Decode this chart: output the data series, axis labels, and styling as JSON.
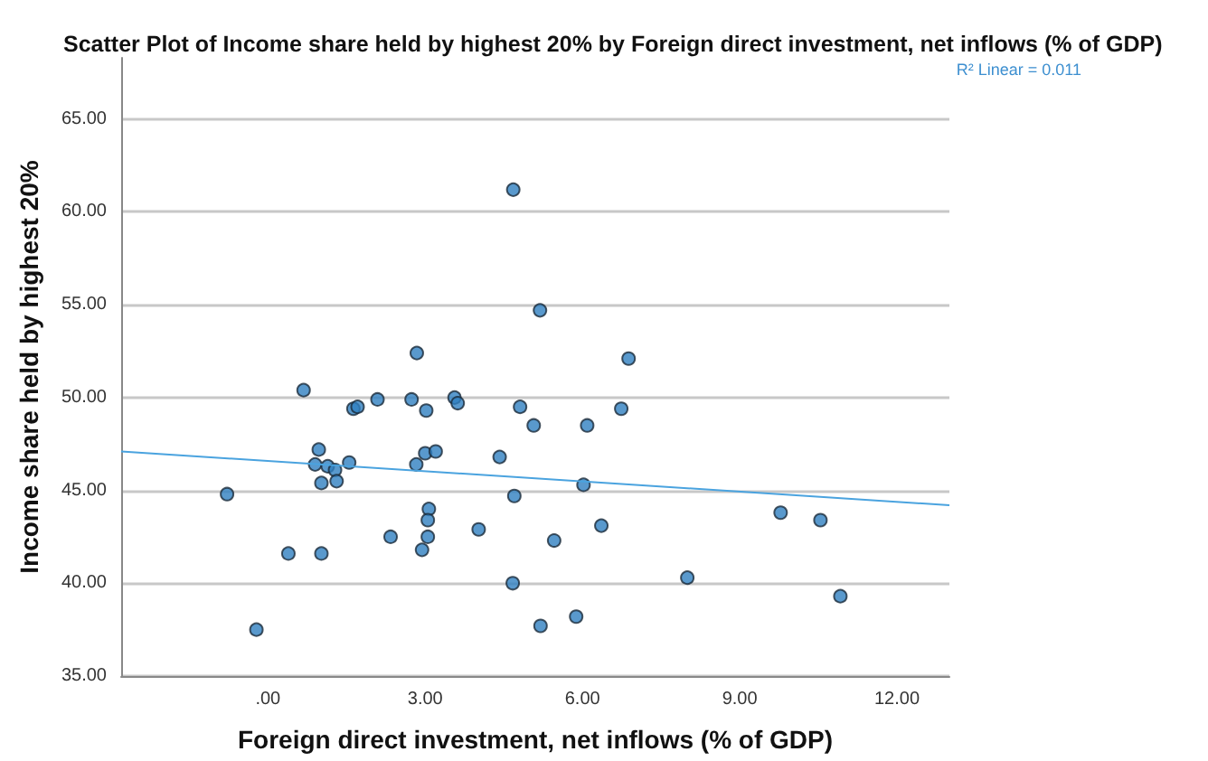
{
  "chart_data": {
    "type": "scatter",
    "title": "Scatter Plot of Income share held by highest 20% by Foreign direct investment, net inflows (% of GDP)",
    "xlabel": "Foreign direct investment, net inflows (% of GDP)",
    "ylabel": "Income share held by highest 20%",
    "annotations": [
      "R² Linear = 0.011"
    ],
    "series": [
      {
        "marker": "circle",
        "color": "#2f7fc1",
        "x": [
          4.68,
          5.19,
          2.84,
          0.68,
          1.63,
          1.71,
          2.09,
          2.74,
          3.02,
          3.56,
          3.62,
          4.81,
          5.07,
          0.97,
          0.9,
          1.14,
          1.28,
          1.55,
          1.02,
          1.31,
          3.0,
          3.2,
          2.83,
          4.42,
          -0.78,
          4.7,
          3.07,
          3.05,
          3.05,
          2.34,
          4.02,
          2.94,
          0.39,
          1.02,
          4.67,
          -0.22,
          5.2,
          5.46,
          6.88,
          6.09,
          6.74,
          6.02,
          6.36,
          8.0,
          9.78,
          10.54,
          10.92,
          5.88
        ],
        "values": [
          61.2,
          54.7,
          52.4,
          50.4,
          49.4,
          49.5,
          49.9,
          49.9,
          49.3,
          50.0,
          49.7,
          49.5,
          48.5,
          47.2,
          46.4,
          46.3,
          46.1,
          46.5,
          45.4,
          45.5,
          47.0,
          47.1,
          46.4,
          46.8,
          44.8,
          44.7,
          44.0,
          43.4,
          42.5,
          42.5,
          42.9,
          41.8,
          41.6,
          41.6,
          40.0,
          37.5,
          37.7,
          42.3,
          52.1,
          48.5,
          49.4,
          45.3,
          43.1,
          40.3,
          43.8,
          43.4,
          39.3,
          38.2
        ]
      },
      {
        "type": "line",
        "color": "#4aa3df",
        "x": [
          -2.8,
          13
        ],
        "values": [
          47.1,
          44.2
        ]
      }
    ],
    "xlim": [
      -2.8,
      13
    ],
    "ylim": [
      35,
      68.3
    ],
    "xticks": [
      {
        "value": 0,
        "label": ".00"
      },
      {
        "value": 3,
        "label": "3.00"
      },
      {
        "value": 6,
        "label": "6.00"
      },
      {
        "value": 9,
        "label": "9.00"
      },
      {
        "value": 12,
        "label": "12.00"
      }
    ],
    "yticks": [
      {
        "value": 35,
        "label": "35.00"
      },
      {
        "value": 40,
        "label": "40.00"
      },
      {
        "value": 45,
        "label": "45.00"
      },
      {
        "value": 50,
        "label": "50.00"
      },
      {
        "value": 55,
        "label": "55.00"
      },
      {
        "value": 60,
        "label": "60.00"
      },
      {
        "value": 65,
        "label": "65.00"
      }
    ],
    "grid": "y"
  }
}
